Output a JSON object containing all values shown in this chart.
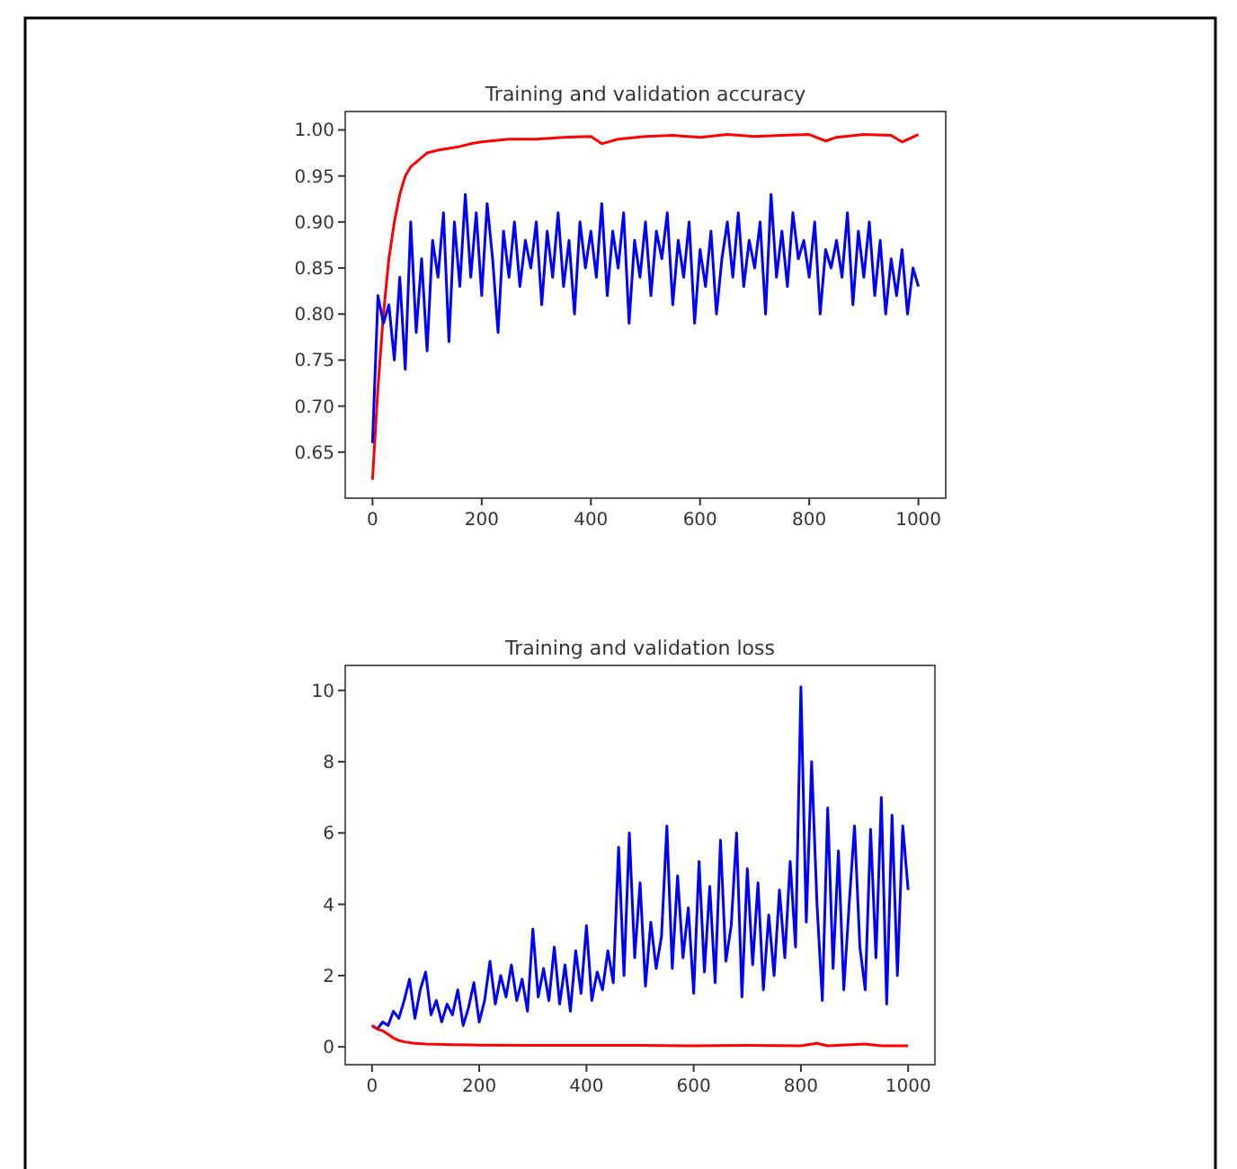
{
  "chart_data": [
    {
      "type": "line",
      "title": "Training and validation accuracy",
      "xlim": [
        -50,
        1050
      ],
      "xticks": [
        0,
        200,
        400,
        600,
        800,
        1000
      ],
      "ylim": [
        0.6,
        1.02
      ],
      "yticks": [
        0.65,
        {
          "value": 0.7,
          "label": "0.70"
        },
        0.75,
        {
          "value": 0.8,
          "label": "0.80"
        },
        0.85,
        {
          "value": 0.9,
          "label": "0.90"
        },
        0.95,
        {
          "value": 1,
          "label": "1.00"
        }
      ],
      "grid": false,
      "series": [
        {
          "color": "#ff0000",
          "x": [
            0,
            10,
            20,
            30,
            40,
            50,
            60,
            70,
            80,
            90,
            100,
            120,
            140,
            160,
            180,
            200,
            250,
            300,
            350,
            400,
            420,
            450,
            500,
            550,
            600,
            650,
            700,
            750,
            800,
            830,
            850,
            900,
            950,
            970,
            1000
          ],
          "values": [
            0.62,
            0.72,
            0.8,
            0.86,
            0.9,
            0.93,
            0.95,
            0.96,
            0.965,
            0.97,
            0.975,
            0.978,
            0.98,
            0.982,
            0.985,
            0.987,
            0.99,
            0.99,
            0.992,
            0.993,
            0.985,
            0.99,
            0.993,
            0.994,
            0.992,
            0.995,
            0.993,
            0.994,
            0.995,
            0.988,
            0.992,
            0.995,
            0.994,
            0.987,
            0.995
          ]
        },
        {
          "color": "#0000ff",
          "x": [
            0,
            10,
            20,
            30,
            40,
            50,
            60,
            70,
            80,
            90,
            100,
            110,
            120,
            130,
            140,
            150,
            160,
            170,
            180,
            190,
            200,
            210,
            220,
            230,
            240,
            250,
            260,
            270,
            280,
            290,
            300,
            310,
            320,
            330,
            340,
            350,
            360,
            370,
            380,
            390,
            400,
            410,
            420,
            430,
            440,
            450,
            460,
            470,
            480,
            490,
            500,
            510,
            520,
            530,
            540,
            550,
            560,
            570,
            580,
            590,
            600,
            610,
            620,
            630,
            640,
            650,
            660,
            670,
            680,
            690,
            700,
            710,
            720,
            730,
            740,
            750,
            760,
            770,
            780,
            790,
            800,
            810,
            820,
            830,
            840,
            850,
            860,
            870,
            880,
            890,
            900,
            910,
            920,
            930,
            940,
            950,
            960,
            970,
            980,
            990,
            1000
          ],
          "values": [
            0.66,
            0.82,
            0.79,
            0.81,
            0.75,
            0.84,
            0.74,
            0.9,
            0.78,
            0.86,
            0.76,
            0.88,
            0.84,
            0.91,
            0.77,
            0.9,
            0.83,
            0.93,
            0.84,
            0.91,
            0.82,
            0.92,
            0.86,
            0.78,
            0.89,
            0.84,
            0.9,
            0.83,
            0.88,
            0.85,
            0.9,
            0.81,
            0.89,
            0.84,
            0.91,
            0.83,
            0.88,
            0.8,
            0.9,
            0.85,
            0.89,
            0.84,
            0.92,
            0.82,
            0.89,
            0.85,
            0.91,
            0.79,
            0.88,
            0.84,
            0.9,
            0.82,
            0.89,
            0.86,
            0.91,
            0.81,
            0.88,
            0.84,
            0.9,
            0.79,
            0.87,
            0.83,
            0.89,
            0.8,
            0.86,
            0.9,
            0.84,
            0.91,
            0.83,
            0.88,
            0.85,
            0.9,
            0.8,
            0.93,
            0.84,
            0.89,
            0.83,
            0.91,
            0.86,
            0.88,
            0.84,
            0.9,
            0.8,
            0.87,
            0.85,
            0.88,
            0.84,
            0.91,
            0.81,
            0.89,
            0.84,
            0.9,
            0.82,
            0.88,
            0.8,
            0.86,
            0.82,
            0.87,
            0.8,
            0.85,
            0.83
          ]
        }
      ]
    },
    {
      "type": "line",
      "title": "Training and validation loss",
      "xlim": [
        -50,
        1050
      ],
      "xticks": [
        0,
        200,
        400,
        600,
        800,
        1000
      ],
      "ylim": [
        -0.5,
        10.7
      ],
      "yticks": [
        0,
        2,
        4,
        6,
        8,
        10
      ],
      "grid": false,
      "series": [
        {
          "color": "#0000ff",
          "x": [
            0,
            10,
            20,
            30,
            40,
            50,
            60,
            70,
            80,
            90,
            100,
            110,
            120,
            130,
            140,
            150,
            160,
            170,
            180,
            190,
            200,
            210,
            220,
            230,
            240,
            250,
            260,
            270,
            280,
            290,
            300,
            310,
            320,
            330,
            340,
            350,
            360,
            370,
            380,
            390,
            400,
            410,
            420,
            430,
            440,
            450,
            460,
            470,
            480,
            490,
            500,
            510,
            520,
            530,
            540,
            550,
            560,
            570,
            580,
            590,
            600,
            610,
            620,
            630,
            640,
            650,
            660,
            670,
            680,
            690,
            700,
            710,
            720,
            730,
            740,
            750,
            760,
            770,
            780,
            790,
            800,
            810,
            820,
            830,
            840,
            850,
            860,
            870,
            880,
            890,
            900,
            910,
            920,
            930,
            940,
            950,
            960,
            970,
            980,
            990,
            1000
          ],
          "values": [
            0.6,
            0.5,
            0.7,
            0.6,
            1.0,
            0.8,
            1.3,
            1.9,
            0.8,
            1.6,
            2.1,
            0.9,
            1.3,
            0.7,
            1.2,
            0.9,
            1.6,
            0.6,
            1.1,
            1.8,
            0.7,
            1.3,
            2.4,
            1.2,
            2.0,
            1.4,
            2.3,
            1.3,
            1.9,
            1.0,
            3.3,
            1.4,
            2.2,
            1.3,
            2.8,
            1.2,
            2.3,
            1.0,
            2.7,
            1.5,
            3.4,
            1.3,
            2.1,
            1.6,
            2.7,
            1.8,
            5.6,
            2.0,
            6.0,
            2.5,
            4.6,
            1.7,
            3.5,
            2.2,
            3.1,
            6.2,
            2.2,
            4.8,
            2.5,
            3.9,
            1.5,
            5.2,
            2.1,
            4.5,
            1.8,
            5.8,
            2.4,
            3.4,
            6.0,
            1.4,
            5.0,
            2.3,
            4.6,
            1.6,
            3.7,
            2.0,
            4.4,
            2.5,
            5.2,
            2.8,
            10.1,
            3.5,
            8.0,
            4.0,
            1.3,
            6.7,
            2.2,
            5.5,
            1.6,
            4.0,
            6.2,
            2.8,
            1.6,
            6.1,
            2.5,
            7.0,
            1.2,
            6.5,
            2.0,
            6.2,
            4.4
          ]
        },
        {
          "color": "#ff0000",
          "x": [
            0,
            10,
            20,
            30,
            40,
            50,
            60,
            80,
            100,
            150,
            200,
            300,
            400,
            500,
            600,
            700,
            800,
            830,
            850,
            920,
            950,
            1000
          ],
          "values": [
            0.6,
            0.5,
            0.45,
            0.35,
            0.25,
            0.18,
            0.14,
            0.1,
            0.08,
            0.06,
            0.05,
            0.04,
            0.04,
            0.04,
            0.03,
            0.04,
            0.03,
            0.1,
            0.03,
            0.08,
            0.03,
            0.03
          ]
        }
      ]
    }
  ]
}
